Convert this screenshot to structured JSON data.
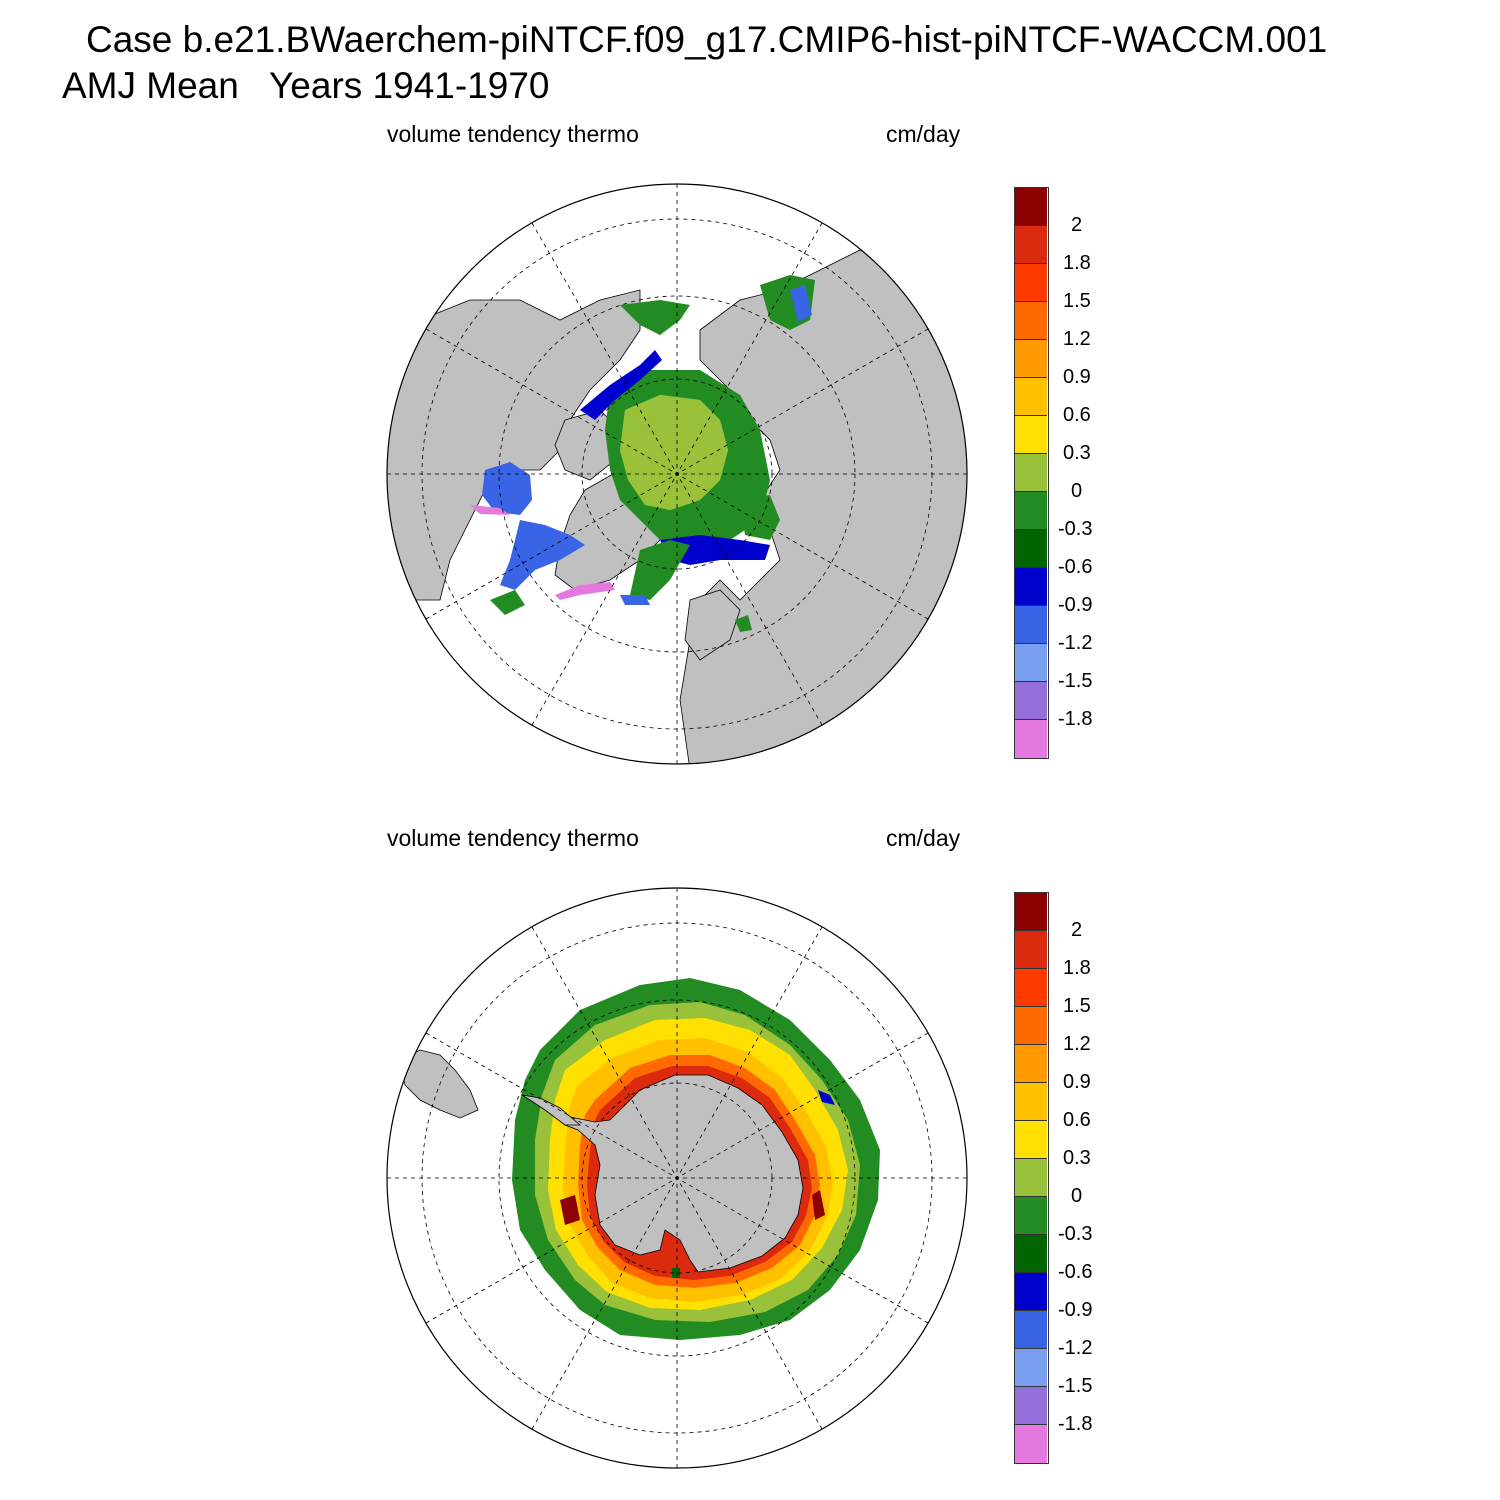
{
  "title": {
    "line1": "Case b.e21.BWaerchem-piNTCF.f09_g17.CMIP6-hist-piNTCF-WACCM.001",
    "line2": "AMJ Mean   Years 1941-1970"
  },
  "panels": [
    {
      "id": "north",
      "hemisphere": "Arctic",
      "variable_label": "volume tendency thermo",
      "units_label": "cm/day"
    },
    {
      "id": "south",
      "hemisphere": "Antarctic",
      "variable_label": "volume tendency thermo",
      "units_label": "cm/day"
    }
  ],
  "colorbar": {
    "tick_labels": [
      "2",
      "1.8",
      "1.5",
      "1.2",
      "0.9",
      "0.6",
      "0.3",
      "0",
      "-0.3",
      "-0.6",
      "-0.9",
      "-1.2",
      "-1.5",
      "-1.8"
    ],
    "colors": [
      "#8b0000",
      "#dc2a0e",
      "#ff3a00",
      "#ff6a00",
      "#ff9a00",
      "#ffc000",
      "#ffe000",
      "#9ac13a",
      "#228b22",
      "#006400",
      "#0000cd",
      "#3a64e6",
      "#7a9ef2",
      "#9370db",
      "#e47ae0"
    ]
  },
  "map_colors": {
    "land": "#c0c0c0",
    "ocean": "#ffffff"
  }
}
